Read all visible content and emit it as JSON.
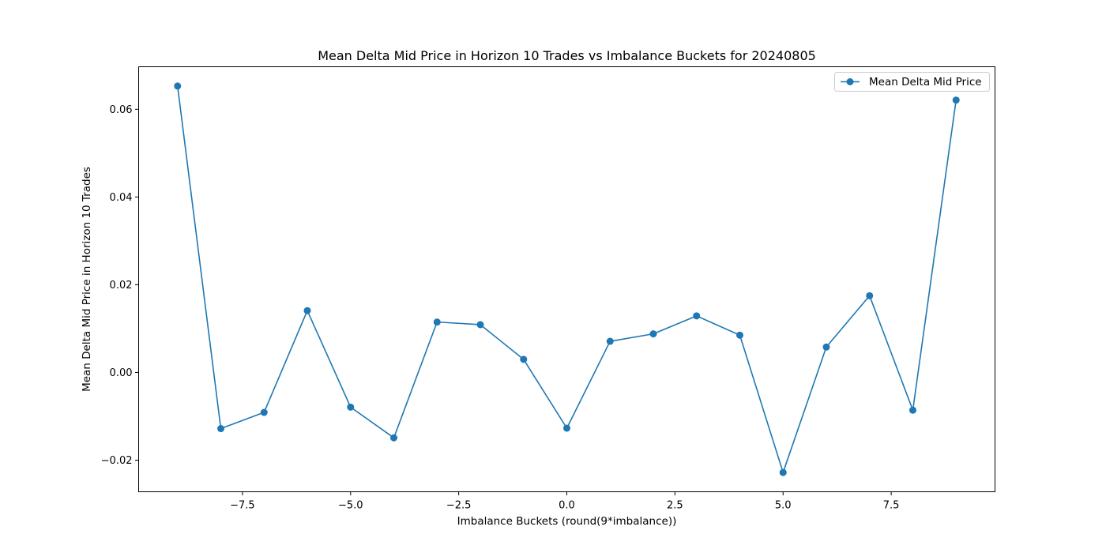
{
  "chart_data": {
    "type": "line",
    "title": "Mean Delta Mid Price in Horizon 10 Trades vs Imbalance Buckets for 20240805",
    "xlabel": "Imbalance Buckets (round(9*imbalance))",
    "ylabel": "Mean Delta Mid Price in Horizon 10 Trades",
    "xlim": [
      -9.9,
      9.9
    ],
    "ylim": [
      -0.0272,
      0.0697
    ],
    "x_ticks": [
      -7.5,
      -5.0,
      -2.5,
      0.0,
      2.5,
      5.0,
      7.5
    ],
    "x_tick_labels": [
      "−7.5",
      "−5.0",
      "−2.5",
      "0.0",
      "2.5",
      "5.0",
      "7.5"
    ],
    "y_ticks": [
      -0.02,
      0.0,
      0.02,
      0.04,
      0.06
    ],
    "y_tick_labels": [
      "−0.02",
      "0.00",
      "0.02",
      "0.04",
      "0.06"
    ],
    "grid": false,
    "legend_position": "upper right",
    "color": "#1f77b4",
    "series": [
      {
        "name": "Mean Delta Mid Price",
        "marker": "circle",
        "x": [
          -9,
          -8,
          -7,
          -6,
          -5,
          -4,
          -3,
          -2,
          -1,
          0,
          1,
          2,
          3,
          4,
          5,
          6,
          7,
          8,
          9
        ],
        "y": [
          0.0653,
          -0.0128,
          -0.0091,
          0.0141,
          -0.0079,
          -0.0149,
          0.0115,
          0.0109,
          0.003,
          -0.0127,
          0.0071,
          0.0088,
          0.0129,
          0.0085,
          -0.0228,
          0.0058,
          0.0175,
          -0.0086,
          0.0621
        ]
      }
    ]
  }
}
